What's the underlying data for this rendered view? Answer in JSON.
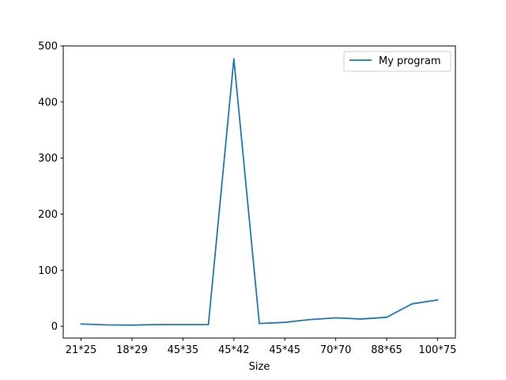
{
  "chart_data": {
    "type": "line",
    "title": "",
    "xlabel": "Size",
    "ylabel": "",
    "x_tick_labels": [
      "21*25",
      "18*29",
      "45*35",
      "45*42",
      "45*45",
      "70*70",
      "88*65",
      "100*75"
    ],
    "x_tick_positions": [
      0,
      2,
      4,
      6,
      8,
      10,
      12,
      14
    ],
    "xlim": [
      -0.7,
      14.7
    ],
    "ylim": [
      -21,
      500
    ],
    "y_ticks": [
      0,
      100,
      200,
      300,
      400,
      500
    ],
    "grid": false,
    "legend_position": "top-right",
    "series": [
      {
        "name": "My program",
        "color": "#1f77b4",
        "x": [
          0,
          1,
          2,
          3,
          4,
          5,
          6,
          7,
          8,
          9,
          10,
          11,
          12,
          13,
          14
        ],
        "values": [
          4,
          2.5,
          2,
          3,
          3,
          3,
          477,
          5,
          7,
          12,
          15,
          13,
          16,
          40,
          47
        ]
      }
    ]
  }
}
